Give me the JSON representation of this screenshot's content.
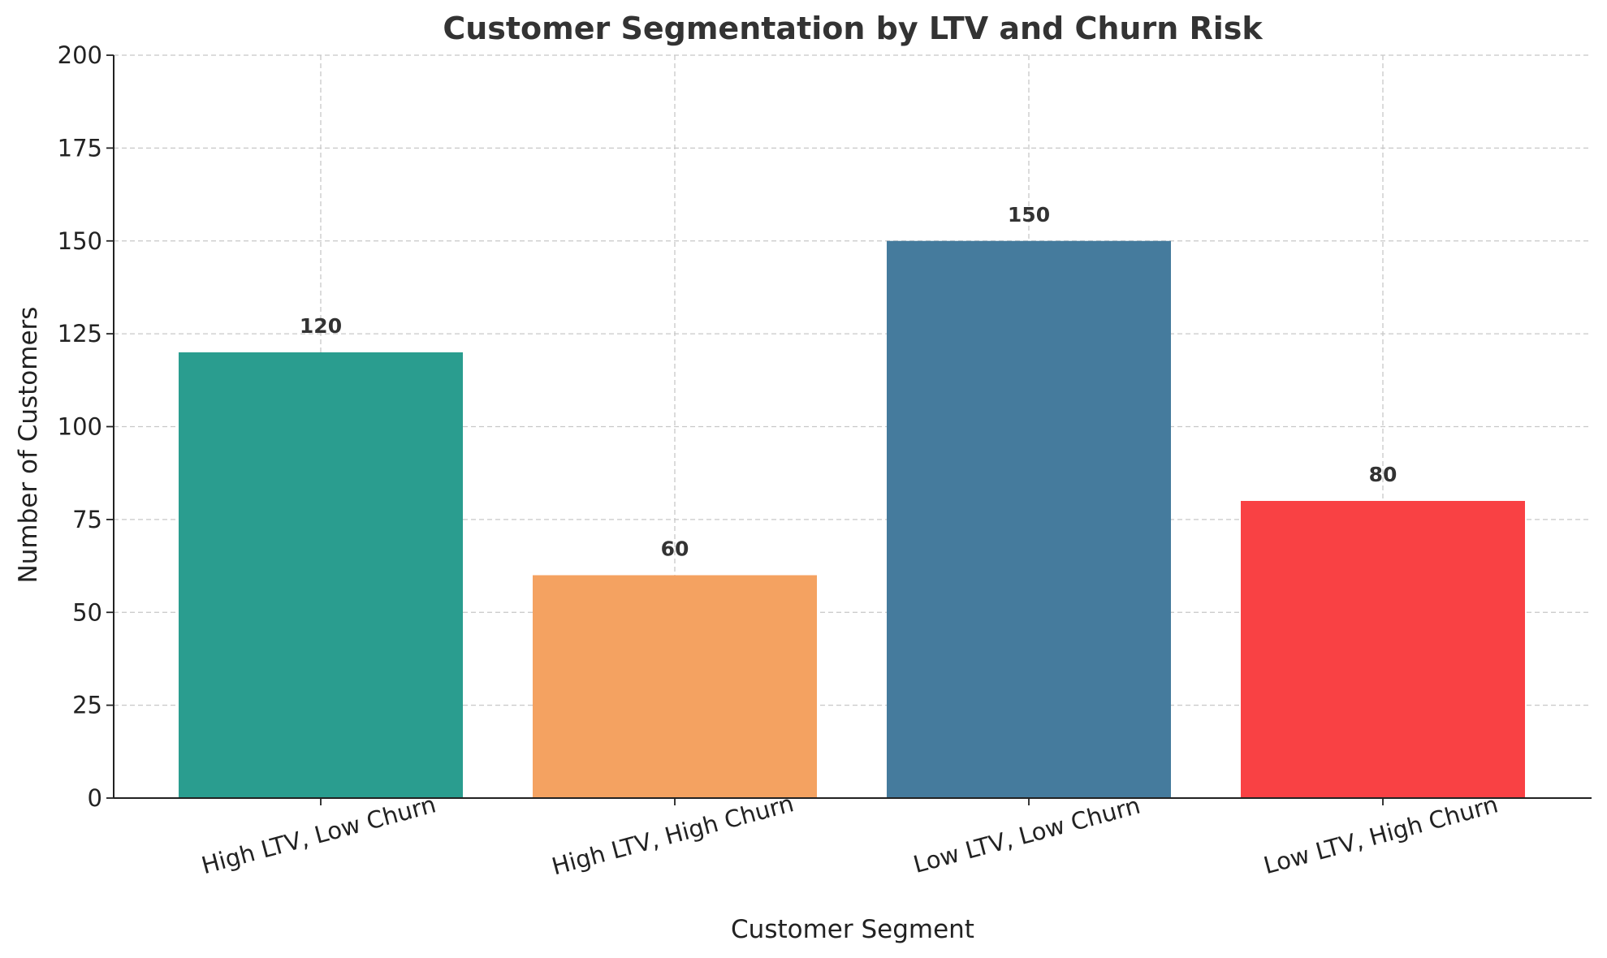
{
  "chart_data": {
    "type": "bar",
    "title": "Customer Segmentation by LTV and Churn Risk",
    "xlabel": "Customer Segment",
    "ylabel": "Number of Customers",
    "categories": [
      "High LTV, Low Churn",
      "High LTV, High Churn",
      "Low LTV, Low Churn",
      "Low LTV, High Churn"
    ],
    "values": [
      120,
      60,
      150,
      80
    ],
    "data_labels": [
      "120",
      "60",
      "150",
      "80"
    ],
    "colors": [
      "#2a9d8f",
      "#f4a261",
      "#457b9d",
      "#f94144"
    ],
    "ylim": [
      0,
      200
    ],
    "yticks": [
      0,
      25,
      50,
      75,
      100,
      125,
      150,
      175,
      200
    ],
    "ytick_labels": [
      "0",
      "25",
      "50",
      "75",
      "100",
      "125",
      "150",
      "175",
      "200"
    ],
    "grid": true,
    "grid_style": "dashed"
  }
}
